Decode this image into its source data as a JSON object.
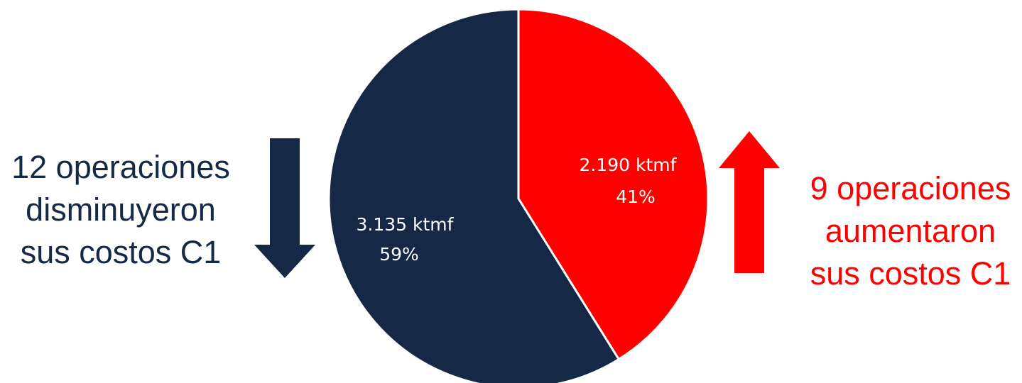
{
  "left_note": {
    "lines": [
      "12 operaciones",
      "disminuyeron",
      "sus costos C1"
    ],
    "color": "#152846",
    "arrow": "down-arrow-icon"
  },
  "right_note": {
    "lines": [
      "9 operaciones",
      "aumentaron",
      "sus costos C1"
    ],
    "color": "#ff0000",
    "arrow": "up-arrow-icon"
  },
  "chart_data": {
    "type": "pie",
    "slices": [
      {
        "value": 3135,
        "unit": "ktmf",
        "value_label": "3.135 ktmf",
        "percent_label": "59%",
        "color": "#152846"
      },
      {
        "value": 2190,
        "unit": "ktmf",
        "value_label": "2.190 ktmf",
        "percent_label": "41%",
        "color": "#ff0000"
      }
    ],
    "title": "",
    "legend": "none"
  }
}
